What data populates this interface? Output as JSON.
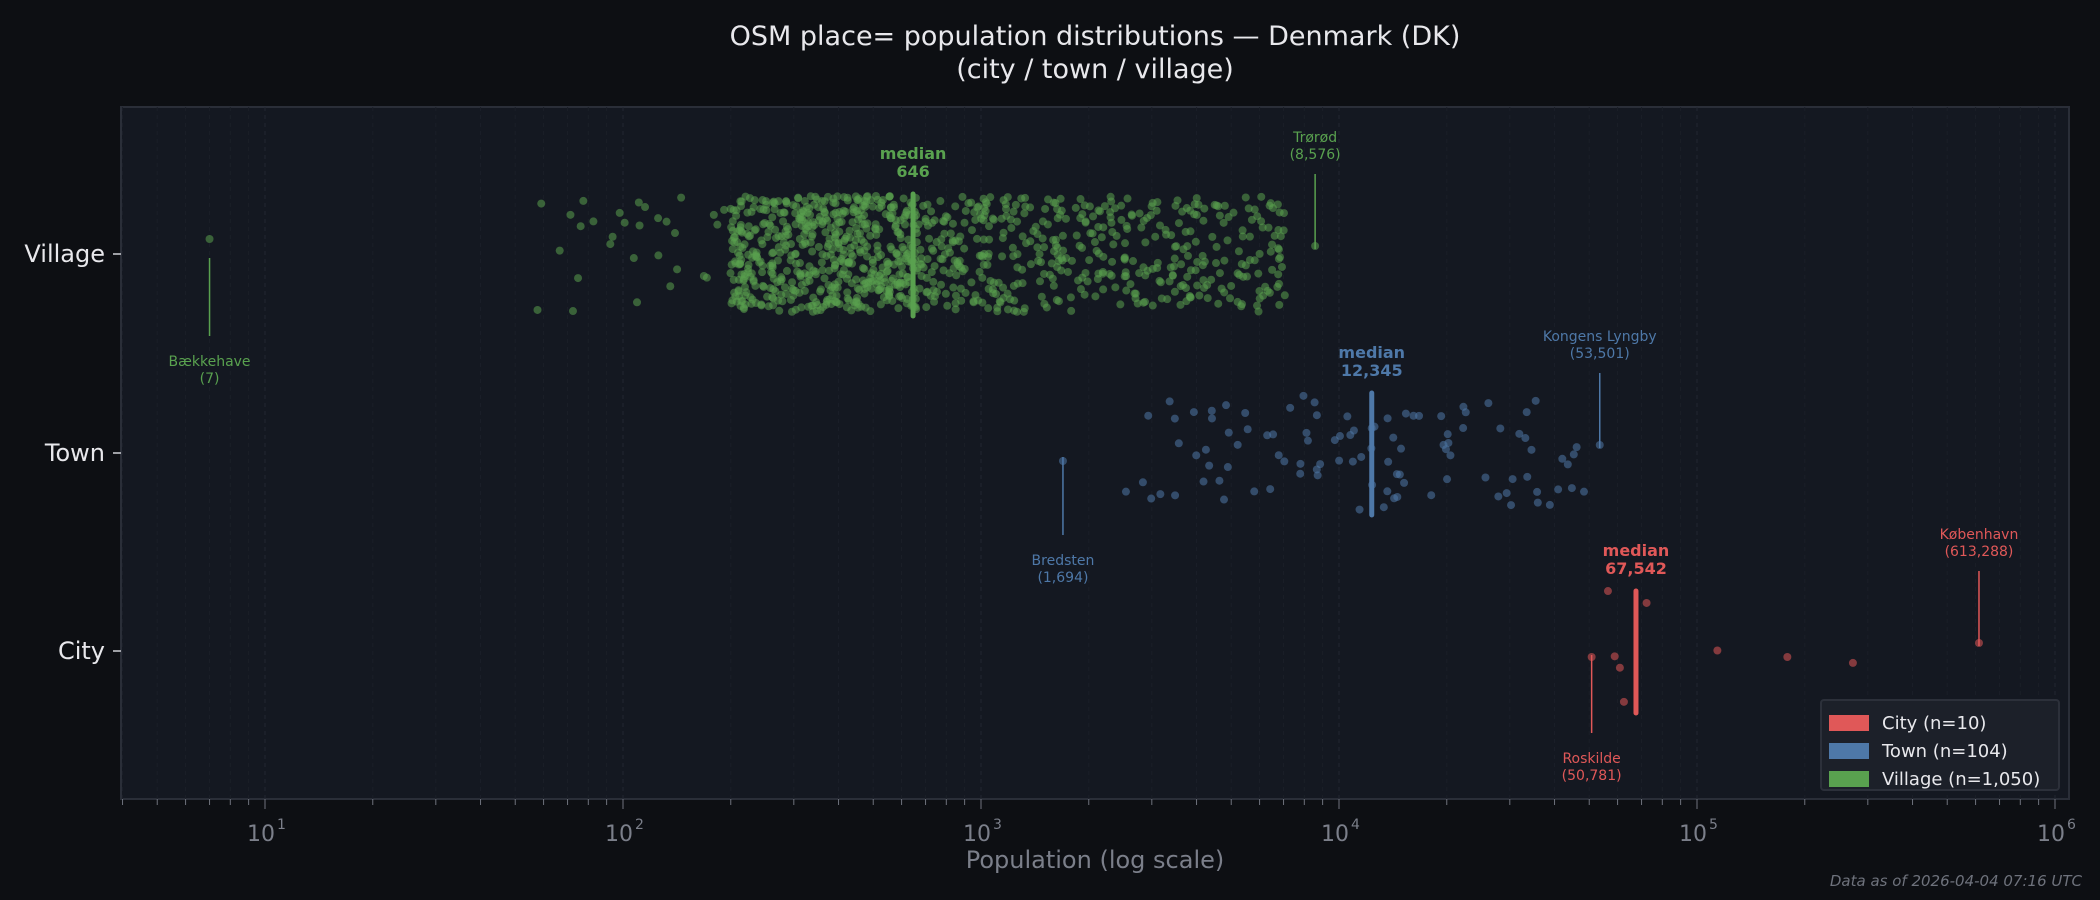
{
  "chart_data": {
    "type": "scatter",
    "title": "OSM place= population distributions — Denmark (DK)",
    "subtitle": "(city / town / village)",
    "xlabel": "Population (log scale)",
    "xscale": "log",
    "xlim": [
      3.9,
      1090000
    ],
    "x_ticks": [
      {
        "value": 10,
        "base": "10",
        "exp": "1"
      },
      {
        "value": 100,
        "base": "10",
        "exp": "2"
      },
      {
        "value": 1000,
        "base": "10",
        "exp": "3"
      },
      {
        "value": 10000,
        "base": "10",
        "exp": "4"
      },
      {
        "value": 100000,
        "base": "10",
        "exp": "5"
      },
      {
        "value": 1000000,
        "base": "10",
        "exp": "6"
      }
    ],
    "categories": [
      "Village",
      "Town",
      "City"
    ],
    "grid": "vertical minor, dashed",
    "legend_placement": "lower-right",
    "series": [
      {
        "name": "City",
        "legend": "City  (n=10)",
        "color": "#e05858",
        "n": 10,
        "median": 67542,
        "median_label": "median",
        "median_value": "67,542",
        "values": [
          50781,
          56400,
          58900,
          60900,
          62500,
          72300,
          114000,
          178800,
          272600,
          613288
        ],
        "annotations": [
          {
            "name": "København",
            "value": 613288,
            "label": "(613,288)",
            "position": "above"
          },
          {
            "name": "Roskilde",
            "value": 50781,
            "label": "(50,781)",
            "position": "below"
          }
        ]
      },
      {
        "name": "Town",
        "legend": "Town  (n=104)",
        "color": "#4e78a8",
        "n": 104,
        "median": 12345,
        "median_label": "median",
        "median_value": "12,345",
        "range": [
          1694,
          53501
        ],
        "annotations": [
          {
            "name": "Kongens Lyngby",
            "value": 53501,
            "label": "(53,501)",
            "position": "above"
          },
          {
            "name": "Bredsten",
            "value": 1694,
            "label": "(1,694)",
            "position": "below"
          }
        ]
      },
      {
        "name": "Village",
        "legend": "Village  (n=1,050)",
        "color": "#59a14f",
        "n": 1050,
        "median": 646,
        "median_label": "median",
        "median_value": "646",
        "range": [
          7,
          8576
        ],
        "annotations": [
          {
            "name": "Trørød",
            "value": 8576,
            "label": "(8,576)",
            "position": "above"
          },
          {
            "name": "Bækkehave",
            "value": 7,
            "label": "(7)",
            "position": "below"
          }
        ]
      }
    ]
  },
  "footer": "Data as of 2026-04-04 07:16 UTC"
}
